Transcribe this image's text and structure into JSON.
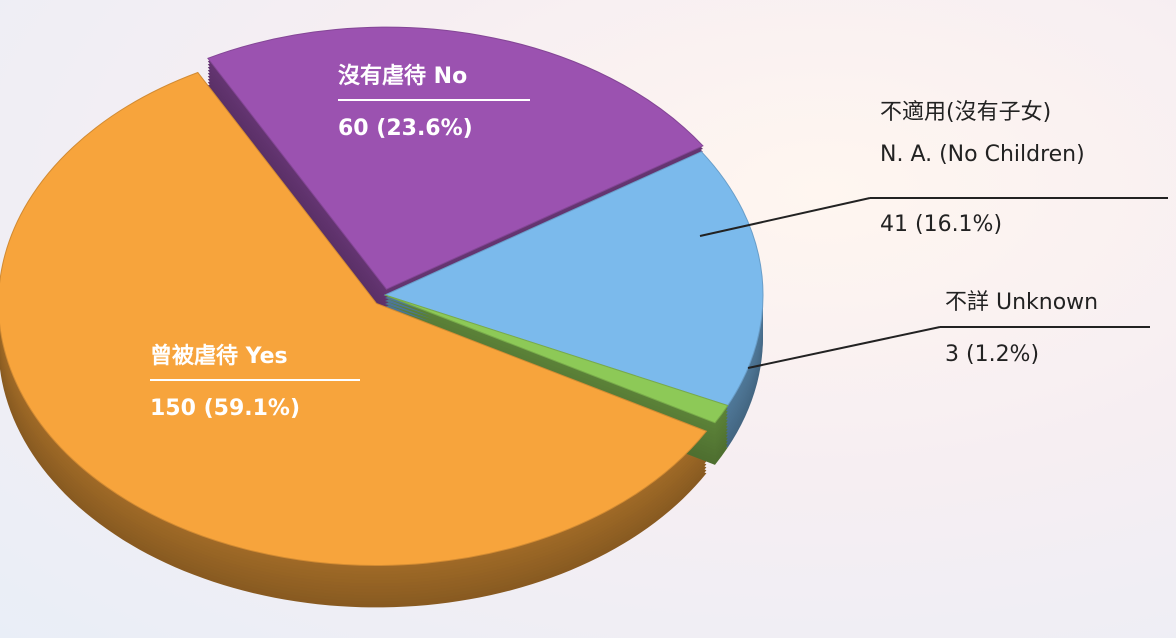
{
  "chart_data": {
    "type": "pie",
    "categories": [
      "曾被虐待 Yes",
      "沒有虐待 No",
      "不適用(沒有子女)\nN. A. (No Children)",
      "不詳 Unknown"
    ],
    "values": [
      150,
      60,
      41,
      3
    ],
    "value_labels": [
      "150 (59.1%)",
      "60 (23.6%)",
      "41 (16.1%)",
      "3 (1.2%)"
    ],
    "colors": [
      "#f7a43c",
      "#9b52b0",
      "#7bbaec",
      "#8dc957"
    ]
  }
}
